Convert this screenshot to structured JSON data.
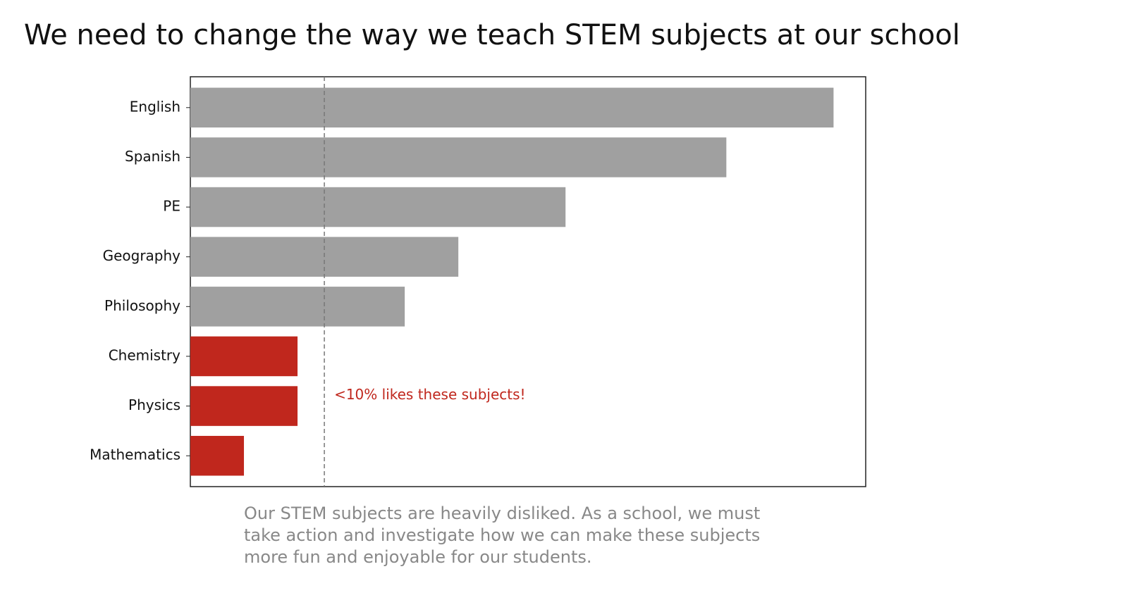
{
  "chart_data": {
    "type": "barh",
    "title": "We need to change the way we teach STEM subjects at our school",
    "categories": [
      "English",
      "Spanish",
      "PE",
      "Geography",
      "Philosophy",
      "Chemistry",
      "Physics",
      "Mathematics"
    ],
    "values": [
      48,
      40,
      28,
      20,
      16,
      8,
      8,
      4
    ],
    "colors": [
      "#a0a0a0",
      "#a0a0a0",
      "#a0a0a0",
      "#a0a0a0",
      "#a0a0a0",
      "#c0271d",
      "#c0271d",
      "#c0271d"
    ],
    "xlim": [
      0,
      50.4
    ],
    "reference_line": 10,
    "annotation": "<10% likes these subjects!",
    "caption": [
      "Our STEM subjects are heavily disliked. As a school, we must",
      "take action and investigate how we can make these subjects",
      "more fun and enjoyable for our students."
    ]
  }
}
